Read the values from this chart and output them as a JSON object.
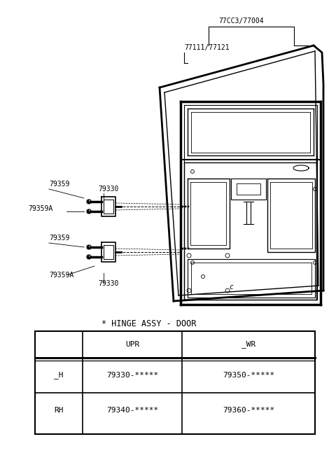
{
  "bg_color": "#ffffff",
  "line_color": "#000000",
  "title": "* HINGE ASSY - DOOR",
  "part_label_77003": "77CC3/77004",
  "part_label_77111": "77111/77121",
  "label_79359_top": "79359",
  "label_79330_top": "79330",
  "label_79359A_top": "79359A",
  "label_79359_bot": "79359",
  "label_79359A_bot": "79359A",
  "label_79330_bot": "79330",
  "table_header_col1": "",
  "table_header_col2": "UPR",
  "table_header_col3": "_WR",
  "table_row1_col1": "_H",
  "table_row1_col2": "79330-*****",
  "table_row1_col3": "79350-*****",
  "table_row2_col1": "RH",
  "table_row2_col2": "79340-*****",
  "table_row2_col3": "79360-*****",
  "font_size_labels": 7,
  "font_size_table": 8,
  "font_size_title": 8.5
}
